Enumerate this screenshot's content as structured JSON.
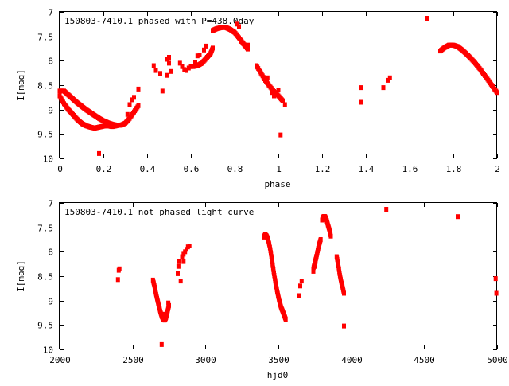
{
  "chart_data": [
    {
      "type": "scatter",
      "title": "150803-7410.1 phased with P=438.0day",
      "xlabel": "phase",
      "ylabel": "I[mag]",
      "xlim": [
        0,
        2
      ],
      "ylim": [
        7,
        10
      ],
      "y_inverted": true,
      "xticks": [
        "0",
        "0.2",
        "0.4",
        "0.6",
        "0.8",
        "1",
        "1.2",
        "1.4",
        "1.6",
        "1.8",
        "2"
      ],
      "yticks": [
        "7",
        "7.5",
        "8",
        "8.5",
        "9",
        "9.5",
        "10"
      ],
      "color": "#ff0000",
      "segments": [
        [
          [
            0.0,
            8.62
          ],
          [
            0.02,
            8.62
          ],
          [
            0.04,
            8.7
          ],
          [
            0.06,
            8.78
          ],
          [
            0.08,
            8.86
          ],
          [
            0.1,
            8.93
          ],
          [
            0.12,
            9.0
          ],
          [
            0.14,
            9.06
          ],
          [
            0.16,
            9.12
          ],
          [
            0.18,
            9.18
          ],
          [
            0.2,
            9.23
          ],
          [
            0.22,
            9.27
          ],
          [
            0.24,
            9.3
          ],
          [
            0.26,
            9.32
          ],
          [
            0.28,
            9.32
          ],
          [
            0.3,
            9.28
          ],
          [
            0.32,
            9.18
          ],
          [
            0.34,
            9.05
          ],
          [
            0.36,
            8.92
          ]
        ],
        [
          [
            0.0,
            8.72
          ],
          [
            0.02,
            8.88
          ],
          [
            0.04,
            9.0
          ],
          [
            0.06,
            9.1
          ],
          [
            0.08,
            9.2
          ],
          [
            0.1,
            9.28
          ],
          [
            0.12,
            9.33
          ],
          [
            0.14,
            9.36
          ],
          [
            0.16,
            9.38
          ],
          [
            0.18,
            9.36
          ],
          [
            0.2,
            9.34
          ],
          [
            0.22,
            9.33
          ],
          [
            0.24,
            9.35
          ],
          [
            0.26,
            9.33
          ]
        ],
        [
          [
            0.61,
            8.12
          ],
          [
            0.63,
            8.1
          ],
          [
            0.65,
            8.05
          ],
          [
            0.67,
            7.95
          ],
          [
            0.69,
            7.85
          ],
          [
            0.7,
            7.74
          ]
        ],
        [
          [
            0.7,
            7.38
          ],
          [
            0.72,
            7.34
          ],
          [
            0.74,
            7.32
          ],
          [
            0.76,
            7.32
          ],
          [
            0.78,
            7.36
          ],
          [
            0.8,
            7.42
          ],
          [
            0.82,
            7.53
          ],
          [
            0.84,
            7.65
          ],
          [
            0.86,
            7.76
          ]
        ],
        [
          [
            0.9,
            8.1
          ],
          [
            0.92,
            8.25
          ],
          [
            0.94,
            8.4
          ],
          [
            0.96,
            8.52
          ],
          [
            0.98,
            8.63
          ],
          [
            1.0,
            8.72
          ],
          [
            1.02,
            8.82
          ]
        ],
        [
          [
            1.74,
            7.8
          ],
          [
            1.76,
            7.73
          ],
          [
            1.78,
            7.68
          ],
          [
            1.8,
            7.68
          ],
          [
            1.82,
            7.71
          ],
          [
            1.84,
            7.78
          ],
          [
            1.86,
            7.86
          ],
          [
            1.88,
            7.95
          ],
          [
            1.9,
            8.05
          ],
          [
            1.92,
            8.16
          ],
          [
            1.94,
            8.28
          ],
          [
            1.96,
            8.4
          ],
          [
            1.98,
            8.53
          ],
          [
            2.0,
            8.65
          ]
        ]
      ],
      "scatter": [
        [
          0.18,
          9.9
        ],
        [
          0.31,
          9.1
        ],
        [
          0.32,
          8.9
        ],
        [
          0.33,
          8.8
        ],
        [
          0.34,
          8.75
        ],
        [
          0.36,
          8.58
        ],
        [
          0.43,
          8.1
        ],
        [
          0.44,
          8.2
        ],
        [
          0.46,
          8.26
        ],
        [
          0.47,
          8.62
        ],
        [
          0.49,
          8.3
        ],
        [
          0.51,
          8.22
        ],
        [
          0.49,
          7.97
        ],
        [
          0.5,
          7.93
        ],
        [
          0.5,
          8.05
        ],
        [
          0.55,
          8.05
        ],
        [
          0.56,
          8.12
        ],
        [
          0.57,
          8.18
        ],
        [
          0.58,
          8.2
        ],
        [
          0.59,
          8.15
        ],
        [
          0.6,
          8.12
        ],
        [
          0.62,
          8.03
        ],
        [
          0.63,
          7.9
        ],
        [
          0.64,
          7.88
        ],
        [
          0.66,
          7.78
        ],
        [
          0.67,
          7.7
        ],
        [
          0.81,
          7.25
        ],
        [
          0.82,
          7.3
        ],
        [
          0.83,
          7.6
        ],
        [
          0.86,
          7.68
        ],
        [
          0.95,
          8.35
        ],
        [
          0.97,
          8.65
        ],
        [
          0.98,
          8.72
        ],
        [
          1.0,
          8.6
        ],
        [
          1.01,
          9.52
        ],
        [
          1.03,
          8.9
        ],
        [
          1.38,
          8.55
        ],
        [
          1.38,
          8.85
        ],
        [
          1.48,
          8.55
        ],
        [
          1.5,
          8.4
        ],
        [
          1.51,
          8.35
        ],
        [
          1.68,
          7.13
        ]
      ]
    },
    {
      "type": "scatter",
      "title": "150803-7410.1 not phased light curve",
      "xlabel": "hjd0",
      "ylabel": "I[mag]",
      "xlim": [
        2000,
        5000
      ],
      "ylim": [
        7,
        10
      ],
      "y_inverted": true,
      "xticks": [
        "2000",
        "2500",
        "3000",
        "3500",
        "4000",
        "4500",
        "5000"
      ],
      "yticks": [
        "7",
        "7.5",
        "8",
        "8.5",
        "9",
        "9.5",
        "10"
      ],
      "color": "#ff0000",
      "segments": [
        [
          [
            2640,
            8.58
          ],
          [
            2650,
            8.7
          ],
          [
            2660,
            8.85
          ],
          [
            2670,
            8.98
          ],
          [
            2680,
            9.1
          ],
          [
            2690,
            9.22
          ],
          [
            2700,
            9.32
          ],
          [
            2710,
            9.38
          ],
          [
            2720,
            9.4
          ],
          [
            2730,
            9.35
          ],
          [
            2740,
            9.22
          ],
          [
            2750,
            9.1
          ]
        ],
        [
          [
            3400,
            7.7
          ],
          [
            3410,
            7.65
          ],
          [
            3420,
            7.68
          ],
          [
            3430,
            7.75
          ],
          [
            3440,
            7.88
          ],
          [
            3450,
            8.05
          ],
          [
            3460,
            8.25
          ],
          [
            3470,
            8.45
          ],
          [
            3480,
            8.62
          ],
          [
            3490,
            8.78
          ],
          [
            3500,
            8.92
          ],
          [
            3510,
            9.05
          ],
          [
            3520,
            9.15
          ],
          [
            3530,
            9.22
          ],
          [
            3540,
            9.3
          ],
          [
            3550,
            9.38
          ]
        ],
        [
          [
            3740,
            8.35
          ],
          [
            3750,
            8.22
          ],
          [
            3760,
            8.12
          ],
          [
            3770,
            7.98
          ],
          [
            3780,
            7.85
          ],
          [
            3790,
            7.75
          ]
        ],
        [
          [
            3800,
            7.35
          ],
          [
            3810,
            7.28
          ],
          [
            3820,
            7.28
          ],
          [
            3830,
            7.34
          ],
          [
            3840,
            7.45
          ],
          [
            3850,
            7.55
          ],
          [
            3860,
            7.68
          ]
        ],
        [
          [
            3900,
            8.1
          ],
          [
            3910,
            8.25
          ],
          [
            3920,
            8.45
          ],
          [
            3930,
            8.6
          ],
          [
            3940,
            8.72
          ],
          [
            3950,
            8.85
          ]
        ]
      ],
      "scatter": [
        [
          2400,
          8.57
        ],
        [
          2405,
          8.38
        ],
        [
          2410,
          8.35
        ],
        [
          2700,
          9.9
        ],
        [
          2720,
          9.28
        ],
        [
          2730,
          9.3
        ],
        [
          2745,
          9.05
        ],
        [
          2810,
          8.45
        ],
        [
          2815,
          8.3
        ],
        [
          2820,
          8.2
        ],
        [
          2830,
          8.6
        ],
        [
          2840,
          8.1
        ],
        [
          2850,
          8.05
        ],
        [
          2860,
          8.0
        ],
        [
          2870,
          7.95
        ],
        [
          2880,
          7.9
        ],
        [
          2890,
          7.88
        ],
        [
          2850,
          8.2
        ],
        [
          3640,
          8.9
        ],
        [
          3650,
          8.7
        ],
        [
          3660,
          8.6
        ],
        [
          3740,
          8.4
        ],
        [
          3750,
          8.3
        ],
        [
          3755,
          8.2
        ],
        [
          3760,
          8.1
        ],
        [
          3950,
          9.52
        ],
        [
          4240,
          7.13
        ],
        [
          4730,
          7.28
        ],
        [
          4990,
          8.55
        ],
        [
          4995,
          8.85
        ]
      ]
    }
  ]
}
